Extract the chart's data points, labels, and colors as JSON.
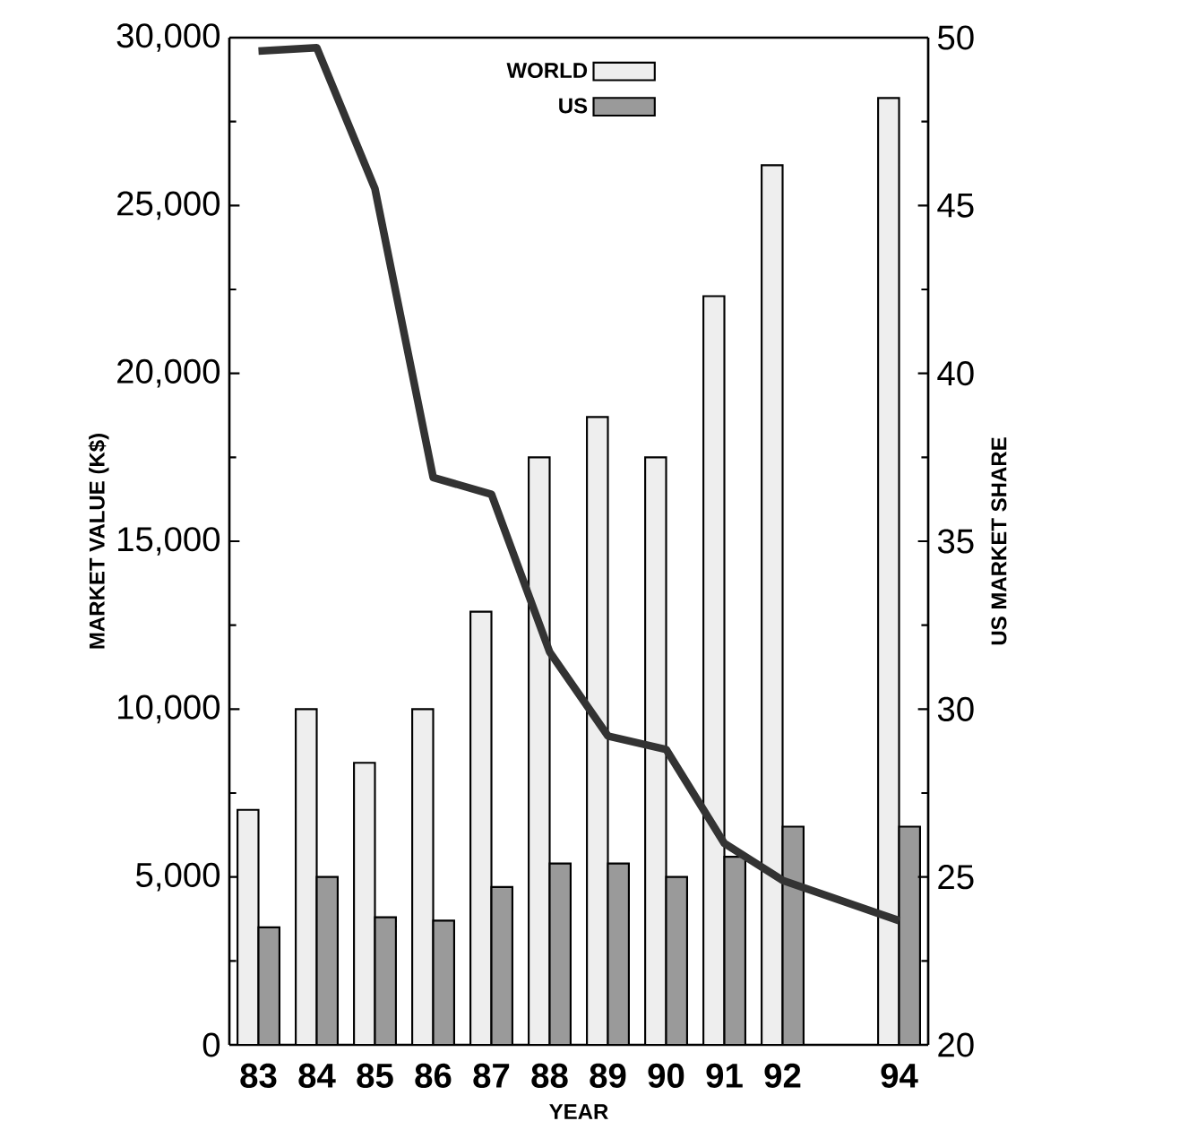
{
  "chart_data": {
    "type": "bar",
    "xlabel": "YEAR",
    "ylabel": "MARKET VALUE (K$)",
    "y2label": "US MARKET SHARE",
    "categories": [
      "83",
      "84",
      "85",
      "86",
      "87",
      "88",
      "89",
      "90",
      "91",
      "92",
      null,
      "94"
    ],
    "series": [
      {
        "name": "WORLD",
        "color": "#eeeeee",
        "values": [
          7000,
          10000,
          8400,
          10000,
          12900,
          17500,
          18700,
          17500,
          22300,
          26200,
          null,
          28200
        ]
      },
      {
        "name": "US",
        "color": "#9a9a9a",
        "values": [
          3500,
          5000,
          3800,
          3700,
          4700,
          5400,
          5400,
          5000,
          5600,
          6500,
          null,
          6500
        ]
      },
      {
        "type": "line",
        "axis": "y2",
        "color": "#333333",
        "values": [
          49.6,
          49.7,
          45.5,
          36.9,
          36.4,
          31.7,
          29.2,
          28.8,
          26.0,
          24.9,
          null,
          23.7
        ]
      }
    ],
    "ylim": [
      0,
      30000
    ],
    "yticks": [
      {
        "value": 0,
        "label": "0"
      },
      {
        "value": 5000,
        "label": "5,000"
      },
      {
        "value": 10000,
        "label": "10,000"
      },
      {
        "value": 15000,
        "label": "15,000"
      },
      {
        "value": 20000,
        "label": "20,000"
      },
      {
        "value": 25000,
        "label": "25,000"
      },
      {
        "value": 30000,
        "label": "30,000"
      }
    ],
    "y2lim": [
      20,
      50
    ],
    "y2ticks": [
      20,
      25,
      30,
      35,
      40,
      45,
      50
    ],
    "legend": "top"
  }
}
